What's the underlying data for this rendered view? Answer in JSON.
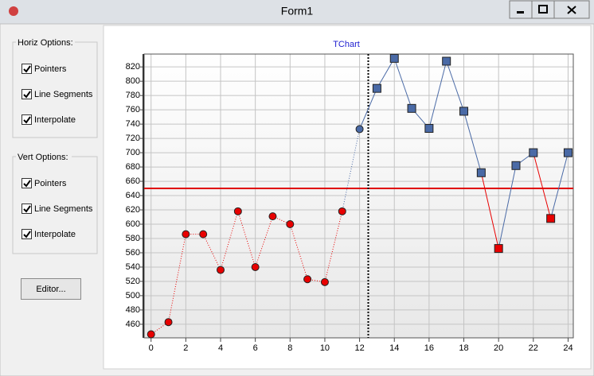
{
  "window": {
    "title": "Form1"
  },
  "horiz_options": {
    "title": "Horiz Options:",
    "items": [
      {
        "label": "Pointers",
        "checked": true
      },
      {
        "label": "Line Segments",
        "checked": true
      },
      {
        "label": "Interpolate",
        "checked": true
      }
    ]
  },
  "vert_options": {
    "title": "Vert Options:",
    "items": [
      {
        "label": "Pointers",
        "checked": true
      },
      {
        "label": "Line Segments",
        "checked": true
      },
      {
        "label": "Interpolate",
        "checked": true
      }
    ]
  },
  "editor_button": "Editor...",
  "chart_data": {
    "type": "line",
    "title": "TChart",
    "x": [
      0,
      1,
      2,
      3,
      4,
      5,
      6,
      7,
      8,
      9,
      10,
      11,
      12,
      13,
      14,
      15,
      16,
      17,
      18,
      19,
      20,
      21,
      22,
      23,
      24
    ],
    "values": [
      446,
      463,
      586,
      586,
      536,
      618,
      540,
      611,
      600,
      523,
      519,
      618,
      733,
      790,
      832,
      762,
      734,
      828,
      758,
      672,
      566,
      682,
      700,
      608,
      700
    ],
    "threshold": 650,
    "split_x": 12.5,
    "above_color": "#4a6aa6",
    "below_color": "#e80000",
    "threshold_color": "#e00000",
    "xlim": [
      -0.4,
      24.3
    ],
    "ylim": [
      441,
      838
    ],
    "xticks": [
      0,
      2,
      4,
      6,
      8,
      10,
      12,
      14,
      16,
      18,
      20,
      22,
      24
    ],
    "yticks": [
      460,
      480,
      500,
      520,
      540,
      560,
      580,
      600,
      620,
      640,
      660,
      680,
      700,
      720,
      740,
      760,
      780,
      800,
      820
    ],
    "grid": true
  }
}
